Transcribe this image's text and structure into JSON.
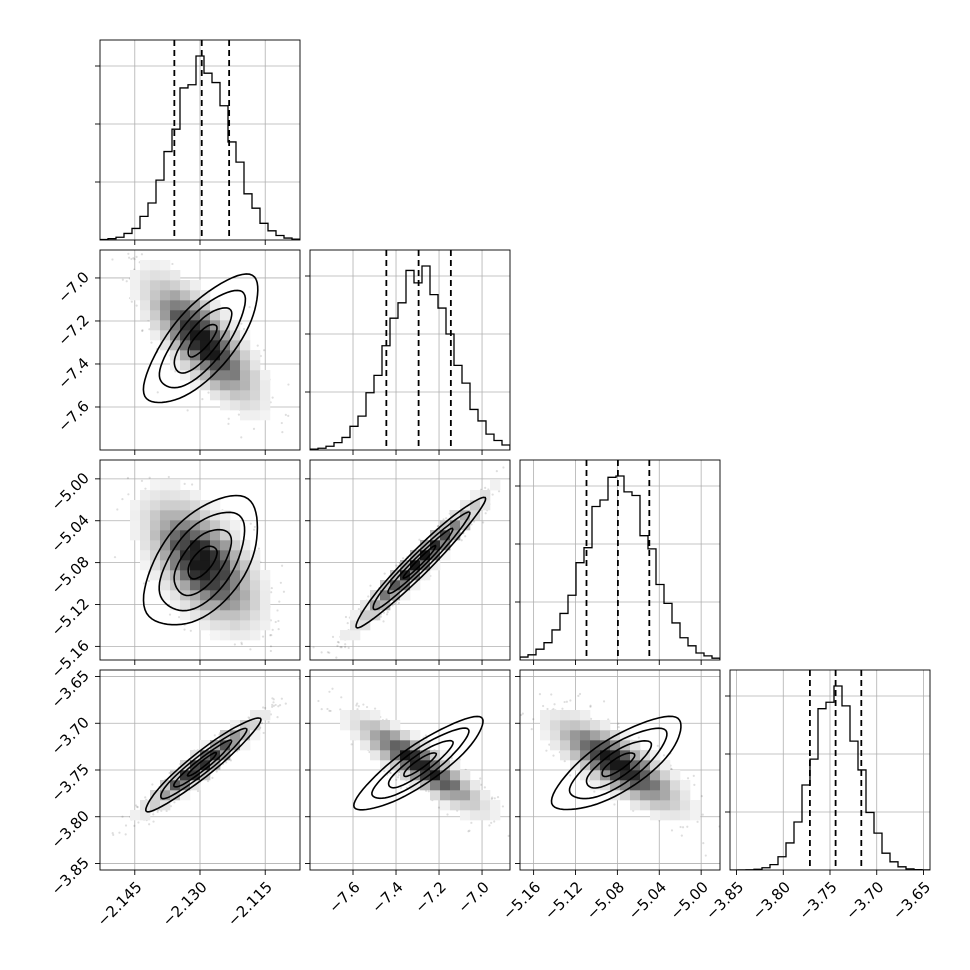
{
  "chart_data": {
    "type": "corner",
    "grid": true,
    "parameters": [
      {
        "range": [
          -2.153,
          -2.107
        ],
        "ticks": [
          -2.145,
          -2.13,
          -2.115
        ],
        "tick_labels": [
          "−2.145",
          "−2.130",
          "−2.115"
        ],
        "mean": -2.1295,
        "sigma": 0.0066,
        "quantiles": [
          -2.1359,
          -2.1296,
          -2.1233
        ]
      },
      {
        "range": [
          -7.8,
          -6.87
        ],
        "ticks": [
          -7.6,
          -7.4,
          -7.2,
          -7.0
        ],
        "tick_labels": [
          "−7.6",
          "−7.4",
          "−7.2",
          "−7.0"
        ],
        "mean": -7.29,
        "sigma": 0.15,
        "quantiles": [
          -7.445,
          -7.295,
          -7.145
        ]
      },
      {
        "range": [
          -5.173,
          -4.982
        ],
        "ticks": [
          -5.16,
          -5.12,
          -5.08,
          -5.04,
          -5.0
        ],
        "tick_labels": [
          "−5.16",
          "−5.12",
          "−5.08",
          "−5.04",
          "−5.00"
        ],
        "mean": -5.0795,
        "sigma": 0.031,
        "quantiles": [
          -5.1095,
          -5.0795,
          -5.0495
        ]
      },
      {
        "range": [
          -3.857,
          -3.643
        ],
        "ticks": [
          -3.85,
          -3.8,
          -3.75,
          -3.7,
          -3.65
        ],
        "tick_labels": [
          "−3.85",
          "−3.80",
          "−3.75",
          "−3.70",
          "−3.65"
        ],
        "mean": -3.744,
        "sigma": 0.025,
        "quantiles": [
          -3.7715,
          -3.744,
          -3.7165
        ]
      }
    ],
    "correlations": {
      "1,0": -0.75,
      "2,0": -0.55,
      "2,1": 0.97,
      "3,0": 0.95,
      "3,1": -0.88,
      "3,2": -0.78
    },
    "contour_levels_sigma": [
      0.5,
      1.0,
      1.5,
      2.0
    ]
  }
}
